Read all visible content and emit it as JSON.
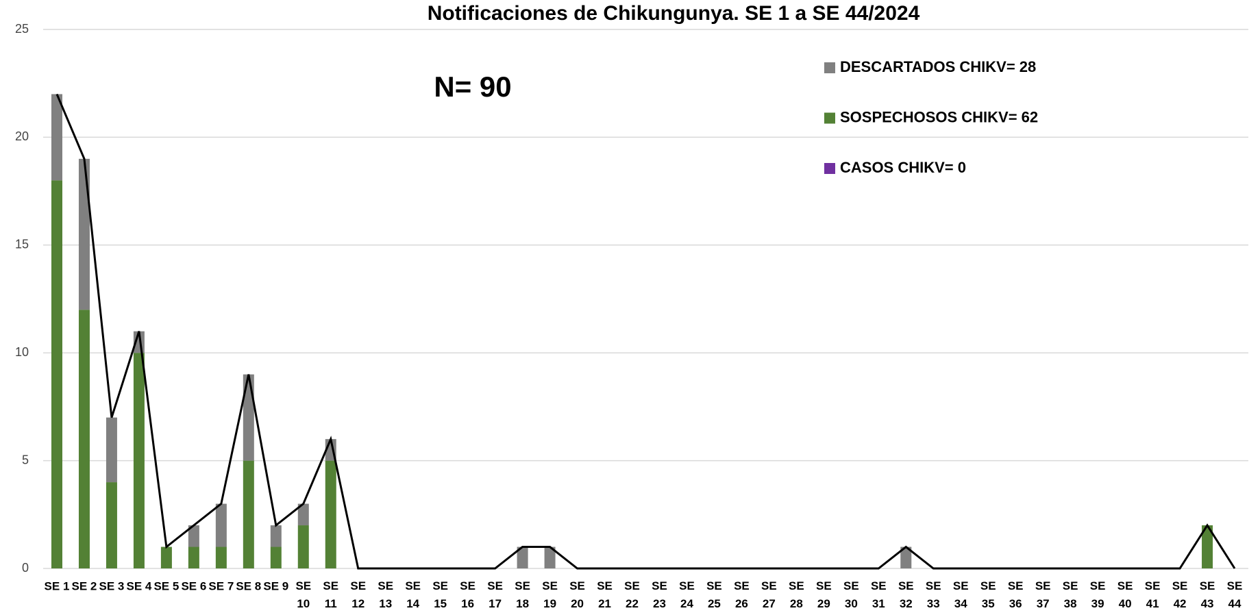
{
  "chart_data": {
    "type": "bar",
    "stacked": true,
    "title": "Notificaciones de Chikungunya. SE  1 a SE 44/2024",
    "annotation": "N= 90",
    "categories": [
      "SE 1",
      "SE 2",
      "SE 3",
      "SE 4",
      "SE 5",
      "SE 6",
      "SE 7",
      "SE 8",
      "SE 9",
      "SE 10",
      "SE 11",
      "SE 12",
      "SE 13",
      "SE 14",
      "SE 15",
      "SE 16",
      "SE 17",
      "SE 18",
      "SE 19",
      "SE 20",
      "SE 21",
      "SE 22",
      "SE 23",
      "SE 24",
      "SE 25",
      "SE 26",
      "SE 27",
      "SE 28",
      "SE 29",
      "SE 30",
      "SE 31",
      "SE 32",
      "SE 33",
      "SE 34",
      "SE 35",
      "SE 36",
      "SE 37",
      "SE 38",
      "SE 39",
      "SE 40",
      "SE 41",
      "SE 42",
      "SE 43",
      "SE 44"
    ],
    "series": [
      {
        "name": "DESCARTADOS CHIKV= 28",
        "color": "#808080",
        "values": [
          4,
          7,
          3,
          1,
          0,
          1,
          2,
          4,
          1,
          1,
          1,
          0,
          0,
          0,
          0,
          0,
          0,
          1,
          1,
          0,
          0,
          0,
          0,
          0,
          0,
          0,
          0,
          0,
          0,
          0,
          0,
          1,
          0,
          0,
          0,
          0,
          0,
          0,
          0,
          0,
          0,
          0,
          0,
          0
        ]
      },
      {
        "name": "SOSPECHOSOS CHIKV= 62",
        "color": "#538135",
        "values": [
          18,
          12,
          4,
          10,
          1,
          1,
          1,
          5,
          1,
          2,
          5,
          0,
          0,
          0,
          0,
          0,
          0,
          0,
          0,
          0,
          0,
          0,
          0,
          0,
          0,
          0,
          0,
          0,
          0,
          0,
          0,
          0,
          0,
          0,
          0,
          0,
          0,
          0,
          0,
          0,
          0,
          0,
          2,
          0
        ]
      },
      {
        "name": "CASOS CHIKV= 0",
        "color": "#7030a0",
        "values": [
          0,
          0,
          0,
          0,
          0,
          0,
          0,
          0,
          0,
          0,
          0,
          0,
          0,
          0,
          0,
          0,
          0,
          0,
          0,
          0,
          0,
          0,
          0,
          0,
          0,
          0,
          0,
          0,
          0,
          0,
          0,
          0,
          0,
          0,
          0,
          0,
          0,
          0,
          0,
          0,
          0,
          0,
          0,
          0
        ]
      }
    ],
    "total": {
      "color": "#000000",
      "values": [
        22,
        19,
        7,
        11,
        1,
        2,
        3,
        9,
        2,
        3,
        6,
        0,
        0,
        0,
        0,
        0,
        0,
        1,
        1,
        0,
        0,
        0,
        0,
        0,
        0,
        0,
        0,
        0,
        0,
        0,
        0,
        1,
        0,
        0,
        0,
        0,
        0,
        0,
        0,
        0,
        0,
        0,
        2,
        0
      ]
    },
    "ylim": [
      0,
      25
    ],
    "yticks": [
      0,
      5,
      10,
      15,
      20,
      25
    ],
    "grid": true
  }
}
